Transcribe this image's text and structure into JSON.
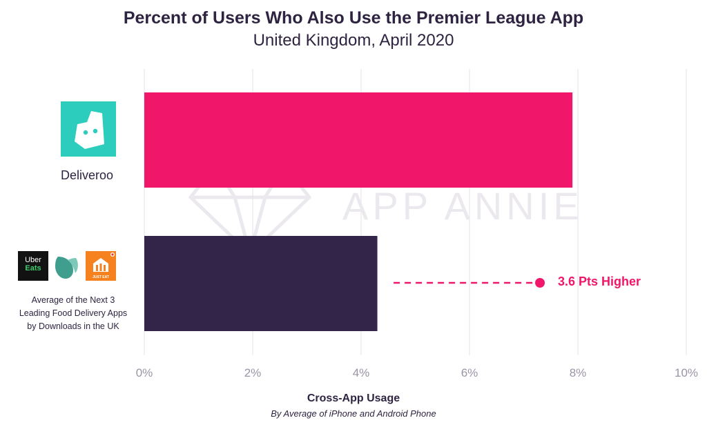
{
  "chart_data": {
    "type": "bar",
    "orientation": "horizontal",
    "title": "Percent of Users Who Also Use the Premier League App",
    "subtitle": "United Kingdom, April 2020",
    "categories": [
      "Deliveroo",
      "Average of the Next 3 Leading Food Delivery Apps by Downloads in the UK"
    ],
    "category_lines": {
      "deliveroo": "Deliveroo",
      "others": [
        "Average of the Next 3",
        "Leading Food Delivery Apps",
        "by Downloads in the UK"
      ]
    },
    "values": [
      7.9,
      4.3
    ],
    "colors": [
      "#f0166a",
      "#33244a"
    ],
    "xlim": [
      0,
      10
    ],
    "x_ticks": [
      0,
      2,
      4,
      6,
      8,
      10
    ],
    "x_tick_labels": [
      "0%",
      "2%",
      "4%",
      "6%",
      "8%",
      "10%"
    ],
    "xlabel": "Cross-App Usage",
    "xlabel_sub": "By Average of iPhone and Android Phone",
    "grid": true,
    "annotation": "3.6 Pts Higher",
    "annotation_color": "#f0166a"
  },
  "logos": {
    "uber_eats": [
      "Uber",
      "Eats"
    ],
    "just_eat": "JUST EAT"
  },
  "watermark": "APP ANNIE",
  "icons": [
    "deliveroo-logo-icon",
    "uber-eats-logo-icon",
    "menulog-style-logo-icon",
    "just-eat-logo-icon",
    "app-annie-diamond-icon"
  ]
}
